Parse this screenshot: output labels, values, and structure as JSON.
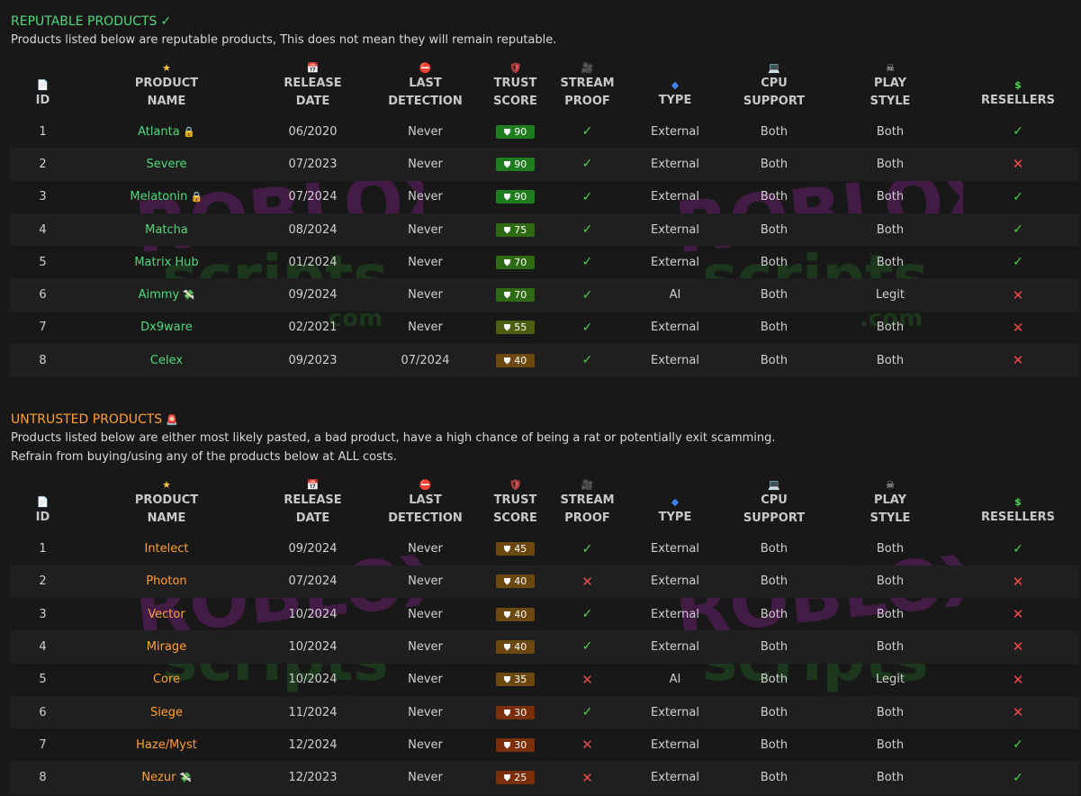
{
  "watermark": {
    "line1": "ROBLOX",
    "line2": "scripts",
    "line3": ".com",
    "colors": {
      "line1": "#4b1d4e",
      "line2": "#1e3b1e"
    }
  },
  "colors": {
    "green": "#4fd87a",
    "orange": "#ff9f36",
    "check": "#4fd14f",
    "cross": "#ef4b4b",
    "badge_90": "#1f7d1f",
    "badge_75": "#2e6a14",
    "badge_55": "#4c5e10",
    "badge_40": "#6b4810",
    "badge_25": "#7a2f0a"
  },
  "columns": [
    {
      "icon": "📄",
      "icon_name": "document-icon",
      "label": "ID"
    },
    {
      "icon": "★",
      "icon_name": "star-icon",
      "label": "PRODUCT NAME"
    },
    {
      "icon": "📅",
      "icon_name": "calendar-icon",
      "label": "RELEASE DATE"
    },
    {
      "icon": "⛔",
      "icon_name": "no-entry-icon",
      "label": "LAST DETECTION"
    },
    {
      "icon": "🛡",
      "icon_name": "shield-icon",
      "label": "TRUST SCORE"
    },
    {
      "icon": "🎥",
      "icon_name": "camera-icon",
      "label": "STREAM PROOF"
    },
    {
      "icon": "◆",
      "icon_name": "diamond-icon",
      "label": "TYPE"
    },
    {
      "icon": "💻",
      "icon_name": "laptop-icon",
      "label": "CPU SUPPORT"
    },
    {
      "icon": "☠",
      "icon_name": "skull-icon",
      "label": "PLAY STYLE"
    },
    {
      "icon": "$",
      "icon_name": "dollar-icon",
      "label": "RESELLERS"
    }
  ],
  "reputable": {
    "title": "REPUTABLE PRODUCTS",
    "title_icon": "✓",
    "desc": [
      "Products listed below are reputable products, This does not mean they will remain reputable."
    ],
    "rows": [
      {
        "id": "1",
        "name": "Atlanta",
        "suffix": "lock",
        "release": "06/2020",
        "detect": "Never",
        "score": "90",
        "stream": true,
        "type": "External",
        "cpu": "Both",
        "style": "Both",
        "resellers": true
      },
      {
        "id": "2",
        "name": "Severe",
        "suffix": "",
        "release": "07/2023",
        "detect": "Never",
        "score": "90",
        "stream": true,
        "type": "External",
        "cpu": "Both",
        "style": "Both",
        "resellers": false
      },
      {
        "id": "3",
        "name": "Melatonin",
        "suffix": "lock",
        "release": "07/2024",
        "detect": "Never",
        "score": "90",
        "stream": true,
        "type": "External",
        "cpu": "Both",
        "style": "Both",
        "resellers": true
      },
      {
        "id": "4",
        "name": "Matcha",
        "suffix": "",
        "release": "08/2024",
        "detect": "Never",
        "score": "75",
        "stream": true,
        "type": "External",
        "cpu": "Both",
        "style": "Both",
        "resellers": true
      },
      {
        "id": "5",
        "name": "Matrix Hub",
        "suffix": "",
        "release": "01/2024",
        "detect": "Never",
        "score": "70",
        "stream": true,
        "type": "External",
        "cpu": "Both",
        "style": "Both",
        "resellers": true
      },
      {
        "id": "6",
        "name": "Aimmy",
        "suffix": "money",
        "release": "09/2024",
        "detect": "Never",
        "score": "70",
        "stream": true,
        "type": "AI",
        "cpu": "Both",
        "style": "Legit",
        "resellers": false
      },
      {
        "id": "7",
        "name": "Dx9ware",
        "suffix": "",
        "release": "02/2021",
        "detect": "Never",
        "score": "55",
        "stream": true,
        "type": "External",
        "cpu": "Both",
        "style": "Both",
        "resellers": false
      },
      {
        "id": "8",
        "name": "Celex",
        "suffix": "",
        "release": "09/2023",
        "detect": "07/2024",
        "score": "40",
        "stream": true,
        "type": "External",
        "cpu": "Both",
        "style": "Both",
        "resellers": false
      }
    ]
  },
  "untrusted": {
    "title": "UNTRUSTED PRODUCTS",
    "title_icon": "🚨",
    "desc": [
      "Products listed below are either most likely pasted, a bad product, have a high chance of being a rat or potentially exit scamming.",
      "Refrain from buying/using any of the products below at ALL costs."
    ],
    "rows": [
      {
        "id": "1",
        "name": "Intelect",
        "suffix": "",
        "release": "09/2024",
        "detect": "Never",
        "score": "45",
        "stream": true,
        "type": "External",
        "cpu": "Both",
        "style": "Both",
        "resellers": true
      },
      {
        "id": "2",
        "name": "Photon",
        "suffix": "",
        "release": "07/2024",
        "detect": "Never",
        "score": "40",
        "stream": false,
        "type": "External",
        "cpu": "Both",
        "style": "Both",
        "resellers": false
      },
      {
        "id": "3",
        "name": "Vector",
        "suffix": "",
        "release": "10/2024",
        "detect": "Never",
        "score": "40",
        "stream": true,
        "type": "External",
        "cpu": "Both",
        "style": "Both",
        "resellers": false
      },
      {
        "id": "4",
        "name": "Mirage",
        "suffix": "",
        "release": "10/2024",
        "detect": "Never",
        "score": "40",
        "stream": true,
        "type": "External",
        "cpu": "Both",
        "style": "Both",
        "resellers": false
      },
      {
        "id": "5",
        "name": "Core",
        "suffix": "",
        "release": "10/2024",
        "detect": "Never",
        "score": "35",
        "stream": false,
        "type": "AI",
        "cpu": "Both",
        "style": "Legit",
        "resellers": false
      },
      {
        "id": "6",
        "name": "Siege",
        "suffix": "",
        "release": "11/2024",
        "detect": "Never",
        "score": "30",
        "stream": true,
        "type": "External",
        "cpu": "Both",
        "style": "Both",
        "resellers": false
      },
      {
        "id": "7",
        "name": "Haze/Myst",
        "suffix": "",
        "release": "12/2024",
        "detect": "Never",
        "score": "30",
        "stream": false,
        "type": "External",
        "cpu": "Both",
        "style": "Both",
        "resellers": true
      },
      {
        "id": "8",
        "name": "Nezur",
        "suffix": "money",
        "release": "12/2023",
        "detect": "Never",
        "score": "25",
        "stream": false,
        "type": "External",
        "cpu": "Both",
        "style": "Both",
        "resellers": true
      }
    ]
  }
}
